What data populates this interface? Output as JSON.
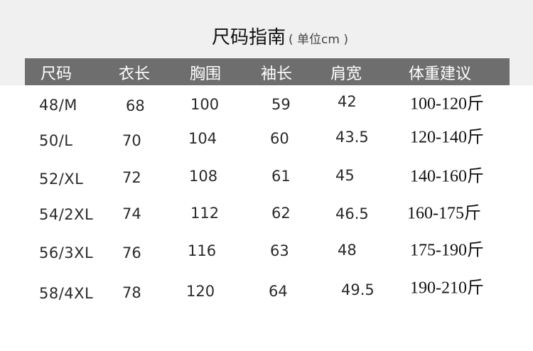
{
  "title": "尺码指南",
  "unit": "( 单位cm )",
  "headers": [
    "尺码",
    "衣长",
    "胸围",
    "袖长",
    "肩宽",
    "体重建议"
  ],
  "rows": [
    [
      "48/M",
      "68",
      "100",
      "59",
      "42",
      "100-120斤"
    ],
    [
      "50/L",
      "70",
      "104",
      "60",
      "43.5",
      "120-140斤"
    ],
    [
      "52/XL",
      "72",
      "108",
      "61",
      "45",
      "140-160斤"
    ],
    [
      "54/2XL",
      "74",
      "112",
      "62",
      "46.5",
      "160-175斤"
    ],
    [
      "56/3XL",
      "76",
      "116",
      "63",
      "48",
      "175-190斤"
    ],
    [
      "58/4XL",
      "78",
      "120",
      "64",
      "49.5",
      "190-210斤"
    ]
  ]
}
